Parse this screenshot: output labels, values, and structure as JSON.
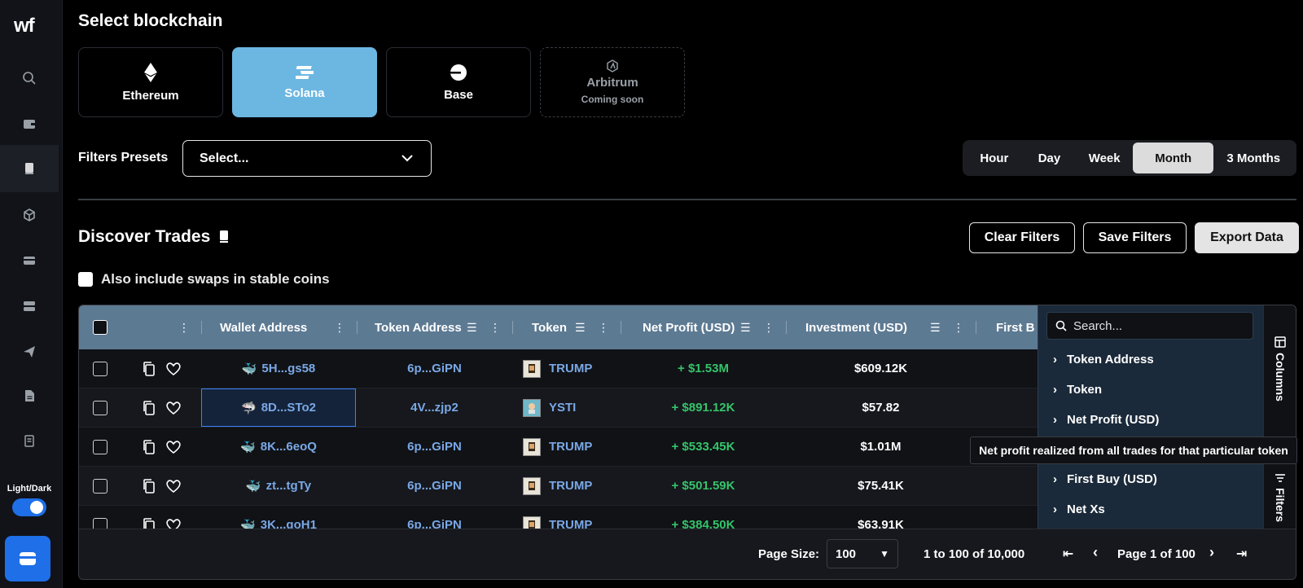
{
  "app": {
    "logo": "wf"
  },
  "sidebar": {
    "theme_label": "Light/Dark",
    "icons": [
      "search-icon",
      "wallet-icon",
      "book-icon",
      "cube-icon",
      "card-icon",
      "server-icon",
      "send-icon",
      "document-icon",
      "receipt-icon"
    ]
  },
  "blockchain": {
    "title": "Select blockchain",
    "chains": [
      {
        "name": "Ethereum",
        "selected": false
      },
      {
        "name": "Solana",
        "selected": true
      },
      {
        "name": "Base",
        "selected": false
      },
      {
        "name": "Arbitrum",
        "sub": "Coming soon",
        "disabled": true
      }
    ]
  },
  "filters": {
    "presets_label": "Filters Presets",
    "presets_value": "Select...",
    "ranges": [
      "Hour",
      "Day",
      "Week",
      "Month",
      "3 Months"
    ],
    "active_range": "Month"
  },
  "discover": {
    "title": "Discover Trades",
    "clear": "Clear Filters",
    "save": "Save Filters",
    "export": "Export Data",
    "include_stable": "Also include swaps in stable coins"
  },
  "table": {
    "columns": [
      "Wallet Address",
      "Token Address",
      "Token",
      "Net Profit (USD)",
      "Investment (USD)",
      "First B"
    ],
    "rows": [
      {
        "wallet": "5H...gs58",
        "token_address": "6p...GiPN",
        "token": "TRUMP",
        "net_profit": "+ $1.53M",
        "investment": "$609.12K"
      },
      {
        "wallet": "8D...STo2",
        "token_address": "4V...zjp2",
        "token": "YSTI",
        "net_profit": "+ $891.12K",
        "investment": "$57.82"
      },
      {
        "wallet": "8K...6eoQ",
        "token_address": "6p...GiPN",
        "token": "TRUMP",
        "net_profit": "+ $533.45K",
        "investment": "$1.01M"
      },
      {
        "wallet": "zt...tgTy",
        "token_address": "6p...GiPN",
        "token": "TRUMP",
        "net_profit": "+ $501.59K",
        "investment": "$75.41K"
      },
      {
        "wallet": "3K...goH1",
        "token_address": "6p...GiPN",
        "token": "TRUMP",
        "net_profit": "+ $384.50K",
        "investment": "$63.91K"
      }
    ]
  },
  "footer": {
    "page_size_label": "Page Size:",
    "page_size": "100",
    "range_text": "1 to 100 of 10,000",
    "page_text": "Page 1 of 100"
  },
  "column_panel": {
    "search_placeholder": "Search...",
    "items": [
      "Token Address",
      "Token",
      "Net Profit (USD)",
      "First Buy (USD)",
      "Net Xs"
    ],
    "tab_columns": "Columns",
    "tab_filters": "Filters",
    "tooltip": "Net profit realized from all trades for that particular token"
  },
  "colors": {
    "accent": "#1e6fe8",
    "selected_chain": "#6cb6e2",
    "header": "#5d7a93",
    "profit": "#35c46a",
    "link": "#7aa8e6"
  }
}
